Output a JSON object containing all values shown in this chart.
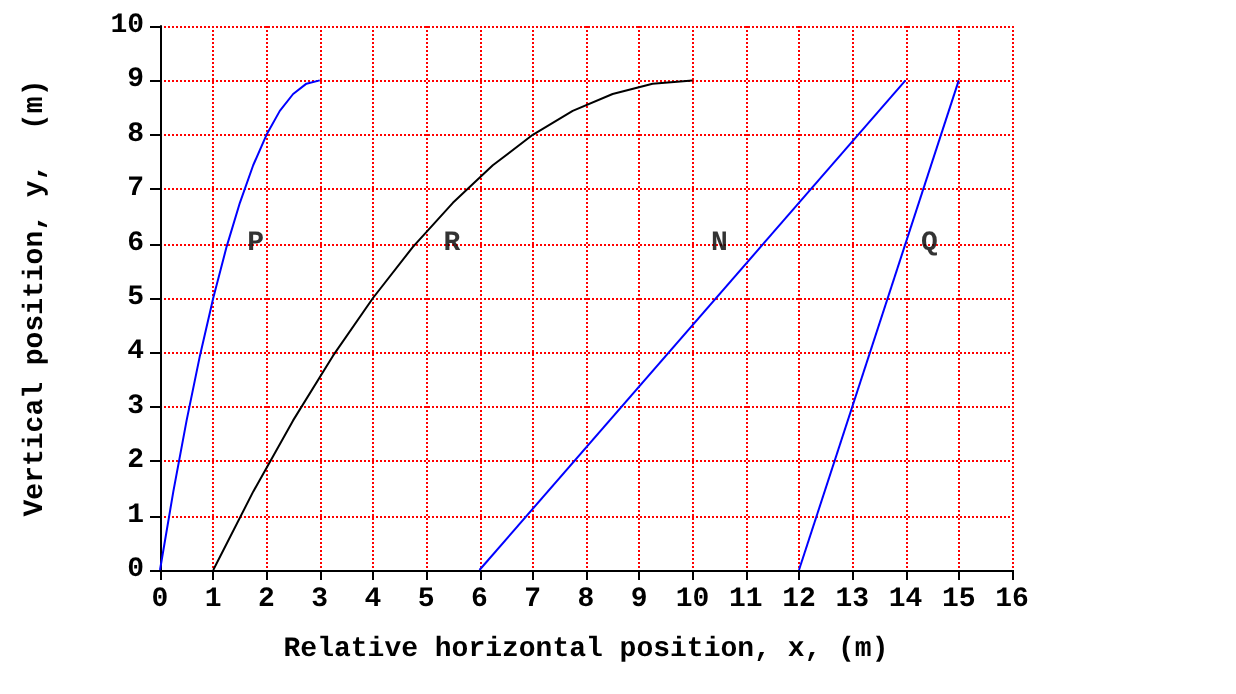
{
  "chart_data": {
    "type": "line",
    "xlabel": "Relative horizontal position, x, (m)",
    "ylabel": "Vertical position, y,  (m)",
    "xlim": [
      0,
      16
    ],
    "xticks": [
      0,
      1,
      2,
      3,
      4,
      5,
      6,
      7,
      8,
      9,
      10,
      11,
      12,
      13,
      14,
      15,
      16
    ],
    "ylim": [
      0,
      10
    ],
    "yticks": [
      0,
      1,
      2,
      3,
      4,
      5,
      6,
      7,
      8,
      9,
      10
    ],
    "grid": true,
    "series": [
      {
        "name": "P",
        "color": "#0000ff",
        "x": [
          0,
          0.25,
          0.5,
          0.75,
          1,
          1.25,
          1.5,
          1.75,
          2,
          2.25,
          2.5,
          2.75,
          3
        ],
        "values": [
          0,
          1.44,
          2.75,
          3.94,
          5,
          5.94,
          6.75,
          7.44,
          8,
          8.44,
          8.75,
          8.94,
          9
        ]
      },
      {
        "name": "R",
        "color": "#000000",
        "x": [
          1,
          1.75,
          2.5,
          3.25,
          4,
          4.75,
          5.5,
          6.25,
          7,
          7.75,
          8.5,
          9.25,
          10
        ],
        "values": [
          0,
          1.44,
          2.75,
          3.94,
          5,
          5.94,
          6.75,
          7.44,
          8,
          8.44,
          8.75,
          8.94,
          9
        ]
      },
      {
        "name": "N",
        "color": "#0000ff",
        "x": [
          6,
          14
        ],
        "values": [
          0,
          9
        ]
      },
      {
        "name": "Q",
        "color": "#0000ff",
        "x": [
          12,
          15
        ],
        "values": [
          0,
          9
        ]
      }
    ]
  }
}
